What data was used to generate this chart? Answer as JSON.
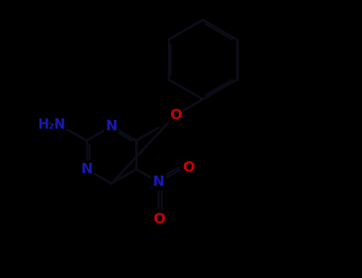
{
  "bg": "#000000",
  "bond_color": "#0d0d1a",
  "N_color": "#1919b3",
  "O_color": "#cc0000",
  "figsize": [
    4.55,
    3.5
  ],
  "dpi": 100,
  "lw": 2.1,
  "lw_dbl": 1.8,
  "dbl_sep": 0.055,
  "fs": 13,
  "xlim": [
    -1.0,
    5.5
  ],
  "ylim": [
    -2.8,
    4.2
  ]
}
